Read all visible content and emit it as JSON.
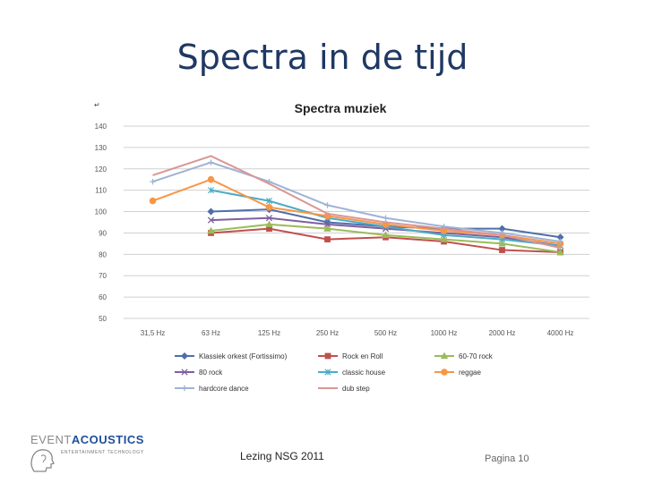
{
  "slide": {
    "title": "Spectra in de tijd",
    "footer_center": "Lezing NSG 2011",
    "page_label": "Pagina 10",
    "logo": {
      "word1": "EVENT",
      "word2": "ACOUSTICS",
      "tagline": "ENTERTAINMENT TECHNOLOGY"
    }
  },
  "chart_data": {
    "type": "line",
    "title": "Spectra muziek",
    "corner_mark": "↵",
    "xlabel": "",
    "ylabel": "",
    "categories": [
      "31,5 Hz",
      "63 Hz",
      "125 Hz",
      "250 Hz",
      "500 Hz",
      "1000 Hz",
      "2000 Hz",
      "4000 Hz"
    ],
    "ylim": [
      50,
      140
    ],
    "yticks": [
      50,
      60,
      70,
      80,
      90,
      100,
      110,
      120,
      130,
      140
    ],
    "grid": true,
    "legend_position": "bottom",
    "series": [
      {
        "name": "Klassiek orkest (Fortissimo)",
        "color": "#4f6fa8",
        "marker": "diamond",
        "values": [
          null,
          100,
          101,
          95,
          93,
          92,
          92,
          88
        ]
      },
      {
        "name": "Rock en Roll",
        "color": "#c0504d",
        "marker": "square",
        "values": [
          null,
          90,
          92,
          87,
          88,
          86,
          82,
          81
        ]
      },
      {
        "name": "60-70 rock",
        "color": "#9bbb59",
        "marker": "triangle",
        "values": [
          null,
          91,
          94,
          92,
          89,
          87,
          85,
          81
        ]
      },
      {
        "name": "80 rock",
        "color": "#7f5fa0",
        "marker": "x",
        "values": [
          null,
          96,
          97,
          94,
          92,
          90,
          88,
          84
        ]
      },
      {
        "name": "classic house",
        "color": "#4bacc6",
        "marker": "star",
        "values": [
          null,
          110,
          105,
          97,
          93,
          89,
          87,
          84
        ]
      },
      {
        "name": "reggae",
        "color": "#f79646",
        "marker": "circle",
        "values": [
          105,
          115,
          102,
          98,
          94,
          91,
          89,
          85
        ]
      },
      {
        "name": "hardcore dance",
        "color": "#9fb3d6",
        "marker": "plus",
        "values": [
          114,
          123,
          114,
          103,
          97,
          93,
          90,
          86
        ]
      },
      {
        "name": "dub step",
        "color": "#d99694",
        "marker": "none",
        "values": [
          117,
          126,
          113,
          99,
          95,
          92,
          89,
          83
        ]
      }
    ]
  }
}
